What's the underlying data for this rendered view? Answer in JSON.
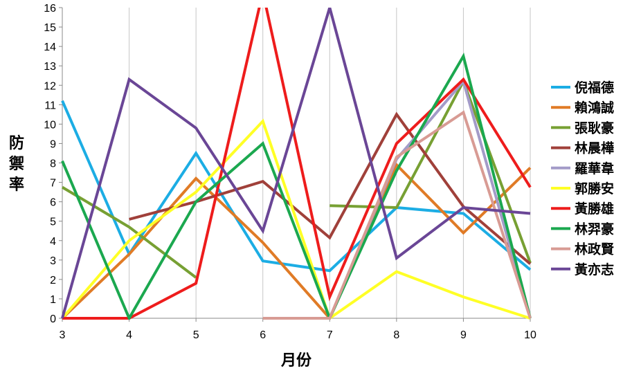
{
  "chart_data": {
    "type": "line",
    "title": "",
    "xlabel": "月份",
    "ylabel": "防禦率",
    "x": [
      3,
      4,
      5,
      6,
      7,
      8,
      9,
      10
    ],
    "xlim": [
      3,
      10
    ],
    "ylim": [
      0,
      16
    ],
    "yticks": [
      0,
      1,
      2,
      3,
      4,
      5,
      6,
      7,
      8,
      9,
      10,
      11,
      12,
      13,
      14,
      15,
      16
    ],
    "grid": "vertical",
    "legend_position": "right",
    "series": [
      {
        "name": "倪福德",
        "color": "#1CADE4",
        "values": [
          11.2,
          3.3,
          8.5,
          2.95,
          2.45,
          5.7,
          5.4,
          2.5
        ]
      },
      {
        "name": "賴鴻誠",
        "color": "#E07B26",
        "values": [
          0,
          3.3,
          7.2,
          3.9,
          0,
          7.9,
          4.4,
          7.75
        ]
      },
      {
        "name": "張耿豪",
        "color": "#77A033",
        "values": [
          6.75,
          4.7,
          2.1,
          null,
          5.8,
          5.7,
          12.2,
          2.85
        ]
      },
      {
        "name": "林晨樺",
        "color": "#A0403A",
        "values": [
          null,
          5.1,
          6.0,
          7.05,
          4.15,
          10.5,
          5.75,
          2.8
        ]
      },
      {
        "name": "羅華韋",
        "color": "#A39BC8",
        "values": [
          null,
          null,
          null,
          null,
          0,
          8.2,
          12.2,
          0
        ]
      },
      {
        "name": "郭勝安",
        "color": "#FFFF26",
        "values": [
          0,
          4.0,
          6.5,
          10.15,
          0,
          2.4,
          1.1,
          0
        ]
      },
      {
        "name": "黃勝雄",
        "color": "#EE1C1C",
        "values": [
          0,
          0,
          1.8,
          16.8,
          1.1,
          9.0,
          12.3,
          6.75
        ]
      },
      {
        "name": "林羿豪",
        "color": "#1BA84F",
        "values": [
          8.1,
          0,
          6.0,
          9.0,
          0,
          7.6,
          13.5,
          0
        ]
      },
      {
        "name": "林政賢",
        "color": "#D89B94",
        "values": [
          null,
          null,
          null,
          0,
          0,
          8.3,
          10.6,
          0
        ]
      },
      {
        "name": "黃亦志",
        "color": "#6A4696",
        "values": [
          0,
          12.3,
          9.8,
          4.5,
          16.0,
          3.1,
          5.7,
          5.4
        ]
      }
    ]
  }
}
